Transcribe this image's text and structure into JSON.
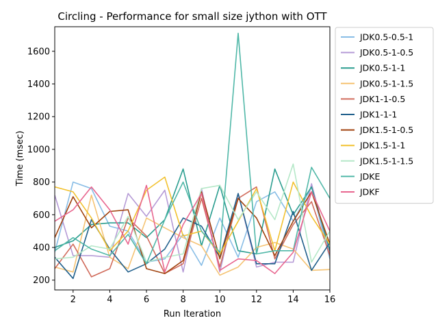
{
  "chart_data": {
    "type": "line",
    "title": "Circling - Performance for small size jython with OTT",
    "xlabel": "Run Iteration",
    "ylabel": "Time (msec)",
    "xlim": [
      1,
      16
    ],
    "ylim": [
      140,
      1750
    ],
    "xticks": [
      2,
      4,
      6,
      8,
      10,
      12,
      14,
      16
    ],
    "yticks": [
      200,
      400,
      600,
      800,
      1000,
      1200,
      1400,
      1600
    ],
    "grid": false,
    "legend_position": "outside-right",
    "x": [
      1,
      2,
      3,
      4,
      5,
      6,
      7,
      8,
      9,
      10,
      11,
      12,
      13,
      14,
      15,
      16
    ],
    "series": [
      {
        "name": "JDK0.5-0.5-1",
        "color": "#88bde6",
        "values": [
          370,
          800,
          760,
          530,
          500,
          310,
          330,
          480,
          290,
          580,
          340,
          680,
          740,
          560,
          770,
          330
        ]
      },
      {
        "name": "JDK0.5-1-0.5",
        "color": "#b59ad6",
        "values": [
          720,
          350,
          350,
          340,
          730,
          590,
          750,
          250,
          760,
          250,
          730,
          280,
          310,
          310,
          790,
          360
        ]
      },
      {
        "name": "JDK0.5-1-1",
        "color": "#2a9d8f",
        "values": [
          400,
          440,
          540,
          550,
          550,
          460,
          570,
          880,
          410,
          780,
          380,
          360,
          880,
          600,
          770,
          380
        ]
      },
      {
        "name": "JDK0.5-1-1.5",
        "color": "#f5c373",
        "values": [
          280,
          250,
          720,
          340,
          270,
          580,
          520,
          460,
          410,
          230,
          280,
          400,
          430,
          390,
          260,
          265
        ]
      },
      {
        "name": "JDK1-1-0.5",
        "color": "#d06a5a",
        "values": [
          270,
          420,
          220,
          270,
          580,
          470,
          240,
          300,
          700,
          280,
          700,
          770,
          330,
          540,
          680,
          350
        ]
      },
      {
        "name": "JDK1-1-1",
        "color": "#1f5f8b",
        "values": [
          340,
          210,
          570,
          390,
          250,
          300,
          390,
          580,
          530,
          340,
          730,
          300,
          300,
          620,
          260,
          430
        ]
      },
      {
        "name": "JDK1.5-1-0.5",
        "color": "#a0420e",
        "values": [
          460,
          710,
          520,
          620,
          630,
          270,
          240,
          320,
          740,
          330,
          700,
          580,
          350,
          560,
          740,
          420
        ]
      },
      {
        "name": "JDK1.5-1-1",
        "color": "#f2c12e",
        "values": [
          770,
          740,
          580,
          380,
          500,
          750,
          830,
          470,
          500,
          360,
          560,
          760,
          380,
          800,
          590,
          420
        ]
      },
      {
        "name": "JDK1.5-1-1.5",
        "color": "#b5e8c8",
        "values": [
          330,
          340,
          410,
          390,
          590,
          310,
          340,
          360,
          760,
          780,
          570,
          740,
          570,
          910,
          310,
          500
        ]
      },
      {
        "name": "JDKE",
        "color": "#4fb7a7",
        "values": [
          380,
          460,
          390,
          350,
          480,
          300,
          570,
          800,
          500,
          370,
          1710,
          360,
          380,
          380,
          890,
          700
        ]
      },
      {
        "name": "JDKF",
        "color": "#e8668f",
        "values": [
          560,
          630,
          770,
          630,
          420,
          780,
          250,
          540,
          730,
          260,
          330,
          320,
          240,
          370,
          740,
          500
        ]
      }
    ]
  }
}
